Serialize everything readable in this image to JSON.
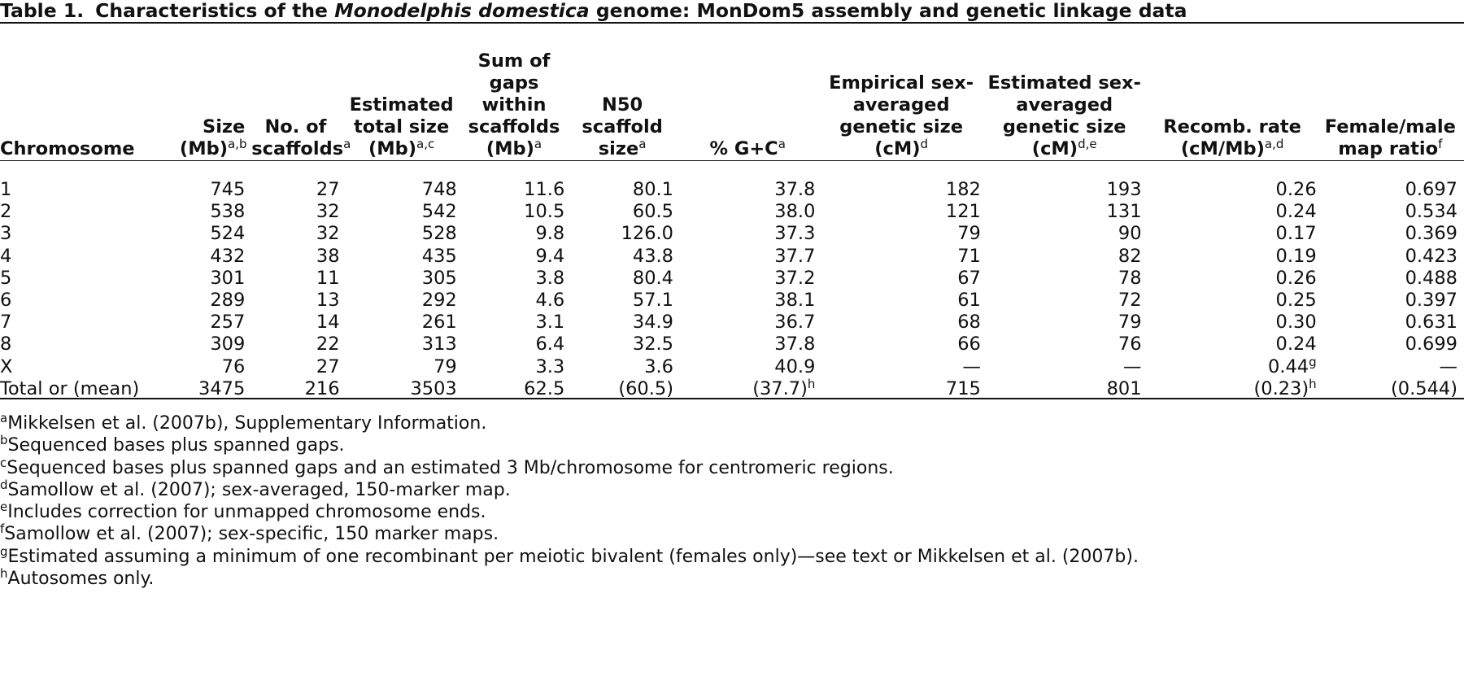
{
  "caption": {
    "label": "Table 1.",
    "pre": "Characteristics of the ",
    "species": "Monodelphis domestica",
    "post": " genome: MonDom5 assembly and genetic linkage data"
  },
  "columns": [
    {
      "text": "Chromosome",
      "sup": ""
    },
    {
      "text": "Size (Mb)",
      "sup": "a,b"
    },
    {
      "text": "No. of scaffolds",
      "sup": "a"
    },
    {
      "text": "Estimated total size (Mb)",
      "sup": "a,c"
    },
    {
      "text": "Sum of gaps within scaffolds (Mb)",
      "sup": "a"
    },
    {
      "text": "N50 scaffold size",
      "sup": "a"
    },
    {
      "text": "% G+C",
      "sup": "a"
    },
    {
      "text": "Empirical sex-averaged genetic size (cM)",
      "sup": "d"
    },
    {
      "text": "Estimated sex-averaged genetic size (cM)",
      "sup": "d,e"
    },
    {
      "text": "Recomb. rate (cM/Mb)",
      "sup": "a,d"
    },
    {
      "text": "Female/male map ratio",
      "sup": "f"
    }
  ],
  "rows": [
    {
      "cells": [
        "1",
        "745",
        "27",
        "748",
        "11.6",
        "80.1",
        "37.8",
        "182",
        "193",
        "0.26",
        "0.697"
      ],
      "sups": [
        "",
        "",
        "",
        "",
        "",
        "",
        "",
        "",
        "",
        "",
        ""
      ]
    },
    {
      "cells": [
        "2",
        "538",
        "32",
        "542",
        "10.5",
        "60.5",
        "38.0",
        "121",
        "131",
        "0.24",
        "0.534"
      ],
      "sups": [
        "",
        "",
        "",
        "",
        "",
        "",
        "",
        "",
        "",
        "",
        ""
      ]
    },
    {
      "cells": [
        "3",
        "524",
        "32",
        "528",
        "9.8",
        "126.0",
        "37.3",
        "79",
        "90",
        "0.17",
        "0.369"
      ],
      "sups": [
        "",
        "",
        "",
        "",
        "",
        "",
        "",
        "",
        "",
        "",
        ""
      ]
    },
    {
      "cells": [
        "4",
        "432",
        "38",
        "435",
        "9.4",
        "43.8",
        "37.7",
        "71",
        "82",
        "0.19",
        "0.423"
      ],
      "sups": [
        "",
        "",
        "",
        "",
        "",
        "",
        "",
        "",
        "",
        "",
        ""
      ]
    },
    {
      "cells": [
        "5",
        "301",
        "11",
        "305",
        "3.8",
        "80.4",
        "37.2",
        "67",
        "78",
        "0.26",
        "0.488"
      ],
      "sups": [
        "",
        "",
        "",
        "",
        "",
        "",
        "",
        "",
        "",
        "",
        ""
      ]
    },
    {
      "cells": [
        "6",
        "289",
        "13",
        "292",
        "4.6",
        "57.1",
        "38.1",
        "61",
        "72",
        "0.25",
        "0.397"
      ],
      "sups": [
        "",
        "",
        "",
        "",
        "",
        "",
        "",
        "",
        "",
        "",
        ""
      ]
    },
    {
      "cells": [
        "7",
        "257",
        "14",
        "261",
        "3.1",
        "34.9",
        "36.7",
        "68",
        "79",
        "0.30",
        "0.631"
      ],
      "sups": [
        "",
        "",
        "",
        "",
        "",
        "",
        "",
        "",
        "",
        "",
        ""
      ]
    },
    {
      "cells": [
        "8",
        "309",
        "22",
        "313",
        "6.4",
        "32.5",
        "37.8",
        "66",
        "76",
        "0.24",
        "0.699"
      ],
      "sups": [
        "",
        "",
        "",
        "",
        "",
        "",
        "",
        "",
        "",
        "",
        ""
      ]
    },
    {
      "cells": [
        "X",
        "76",
        "27",
        "79",
        "3.3",
        "3.6",
        "40.9",
        "—",
        "—",
        "0.44",
        "—"
      ],
      "sups": [
        "",
        "",
        "",
        "",
        "",
        "",
        "",
        "",
        "",
        "g",
        ""
      ]
    },
    {
      "cells": [
        "Total or (mean)",
        "3475",
        "216",
        "3503",
        "62.5",
        "(60.5)",
        "(37.7)",
        "715",
        "801",
        "(0.23)",
        "(0.544)"
      ],
      "sups": [
        "",
        "",
        "",
        "",
        "",
        "",
        "h",
        "",
        "",
        "h",
        ""
      ]
    }
  ],
  "footnotes": [
    {
      "mark": "a",
      "text": "Mikkelsen et al. (2007b), Supplementary Information."
    },
    {
      "mark": "b",
      "text": "Sequenced bases plus spanned gaps."
    },
    {
      "mark": "c",
      "text": "Sequenced bases plus spanned gaps and an estimated 3 Mb/chromosome for centromeric regions."
    },
    {
      "mark": "d",
      "text": "Samollow et al. (2007); sex-averaged, 150-marker map."
    },
    {
      "mark": "e",
      "text": "Includes correction for unmapped chromosome ends."
    },
    {
      "mark": "f",
      "text": "Samollow et al. (2007); sex-specific, 150 marker maps."
    },
    {
      "mark": "g",
      "text": "Estimated assuming a minimum of one recombinant per meiotic bivalent (females only)—see text or Mikkelsen et al. (2007b)."
    },
    {
      "mark": "h",
      "text": "Autosomes only."
    }
  ]
}
